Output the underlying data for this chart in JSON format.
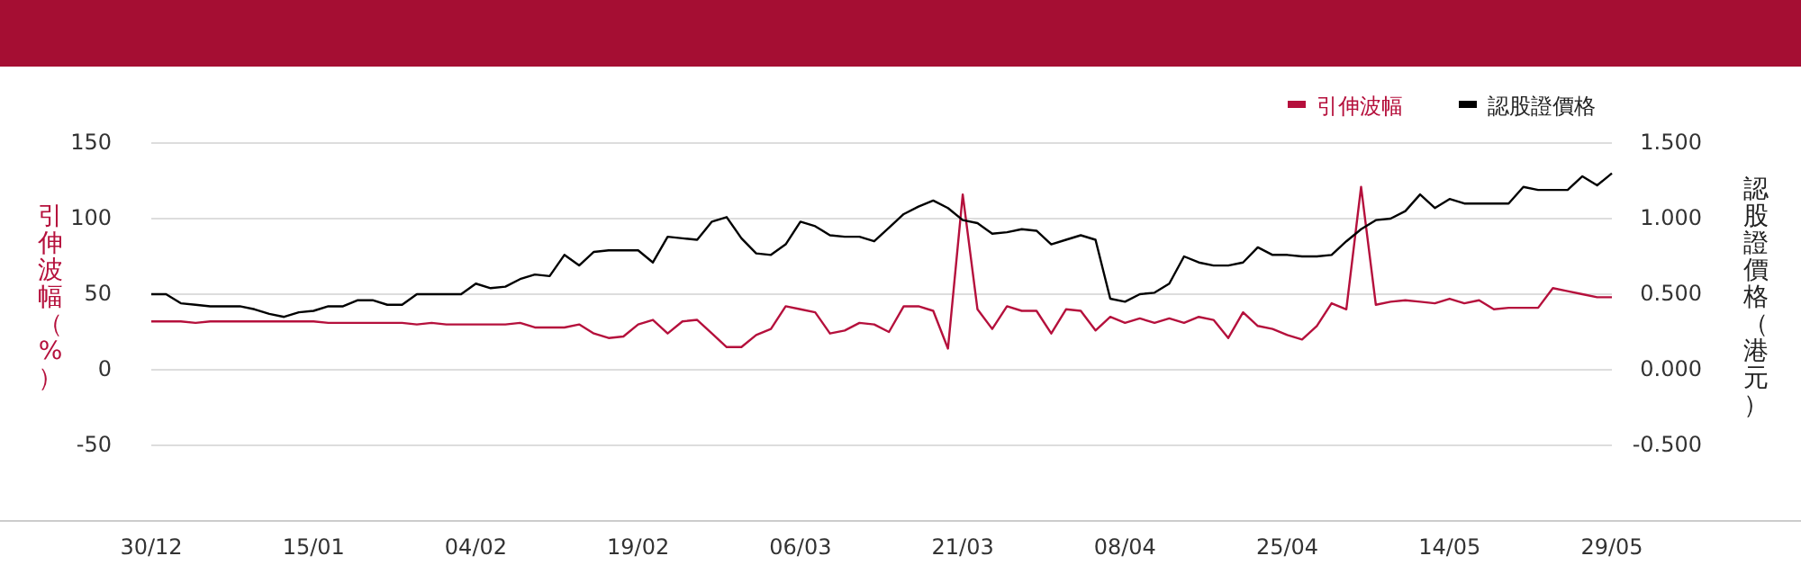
{
  "chart_data": {
    "type": "line",
    "categories": [
      "30/12",
      null,
      null,
      null,
      null,
      null,
      null,
      null,
      null,
      null,
      null,
      "15/01",
      null,
      null,
      null,
      null,
      null,
      null,
      null,
      null,
      null,
      null,
      "04/02",
      null,
      null,
      null,
      null,
      null,
      null,
      null,
      null,
      null,
      null,
      "19/02",
      null,
      null,
      null,
      null,
      null,
      null,
      null,
      null,
      null,
      null,
      "06/03",
      null,
      null,
      null,
      null,
      null,
      null,
      null,
      null,
      null,
      null,
      "21/03",
      null,
      null,
      null,
      null,
      null,
      null,
      null,
      null,
      null,
      null,
      "08/04",
      null,
      null,
      null,
      null,
      null,
      null,
      null,
      null,
      null,
      null,
      "25/04",
      null,
      null,
      null,
      null,
      null,
      null,
      null,
      null,
      null,
      null,
      "14/05",
      null,
      null,
      null,
      null,
      null,
      null,
      null,
      null,
      null,
      null,
      "29/05"
    ],
    "series": [
      {
        "name": "引伸波幅",
        "color": "#b5103c",
        "values": [
          32,
          32,
          32,
          31,
          32,
          32,
          32,
          32,
          32,
          32,
          32,
          32,
          31,
          31,
          31,
          31,
          31,
          31,
          30,
          31,
          30,
          30,
          30,
          30,
          30,
          31,
          28,
          28,
          28,
          30,
          24,
          21,
          22,
          30,
          33,
          24,
          32,
          33,
          24,
          15,
          15,
          23,
          27,
          42,
          40,
          38,
          24,
          26,
          31,
          30,
          25,
          42,
          42,
          39,
          14,
          116,
          40,
          27,
          42,
          39,
          39,
          24,
          40,
          39,
          26,
          35,
          31,
          34,
          31,
          34,
          31,
          35,
          33,
          21,
          38,
          29,
          27,
          23,
          20,
          29,
          44,
          40,
          121,
          43,
          45,
          46,
          45,
          44,
          47,
          44,
          46,
          40,
          41,
          41,
          41,
          54,
          52,
          50,
          48,
          48
        ]
      },
      {
        "name": "認股證價格",
        "color": "#000000",
        "axis": "y2",
        "values": [
          0.5,
          0.5,
          0.44,
          0.43,
          0.42,
          0.42,
          0.42,
          0.4,
          0.37,
          0.35,
          0.38,
          0.39,
          0.42,
          0.42,
          0.46,
          0.46,
          0.43,
          0.43,
          0.5,
          0.5,
          0.5,
          0.5,
          0.57,
          0.54,
          0.55,
          0.6,
          0.63,
          0.62,
          0.76,
          0.69,
          0.78,
          0.79,
          0.79,
          0.79,
          0.71,
          0.88,
          0.87,
          0.86,
          0.98,
          1.01,
          0.87,
          0.77,
          0.76,
          0.83,
          0.98,
          0.95,
          0.89,
          0.88,
          0.88,
          0.85,
          0.94,
          1.03,
          1.08,
          1.12,
          1.07,
          0.99,
          0.97,
          0.9,
          0.91,
          0.93,
          0.92,
          0.83,
          0.86,
          0.89,
          0.86,
          0.47,
          0.45,
          0.5,
          0.51,
          0.57,
          0.75,
          0.71,
          0.69,
          0.69,
          0.71,
          0.81,
          0.76,
          0.76,
          0.75,
          0.75,
          0.76,
          0.85,
          0.93,
          0.99,
          1.0,
          1.05,
          1.16,
          1.07,
          1.13,
          1.1,
          1.1,
          1.1,
          1.1,
          1.21,
          1.19,
          1.19,
          1.19,
          1.28,
          1.22,
          1.3
        ]
      }
    ],
    "ylabel": "引伸波幅（%）",
    "y2label": "認股證價格（港元）",
    "ylim": [
      -100,
      150
    ],
    "yticks": [
      -50,
      0,
      50,
      100,
      150
    ],
    "y2lim": [
      -1,
      1.5
    ],
    "y2ticks": [
      {
        "value": -0.5,
        "label": "-0.500"
      },
      {
        "value": 0,
        "label": "0.000"
      },
      {
        "value": 0.5,
        "label": "0.500"
      },
      {
        "value": 1,
        "label": "1.000"
      },
      {
        "value": 1.5,
        "label": "1.500"
      }
    ],
    "grid": "y",
    "legend": "top right",
    "marker": "none",
    "line_style": "solid"
  }
}
